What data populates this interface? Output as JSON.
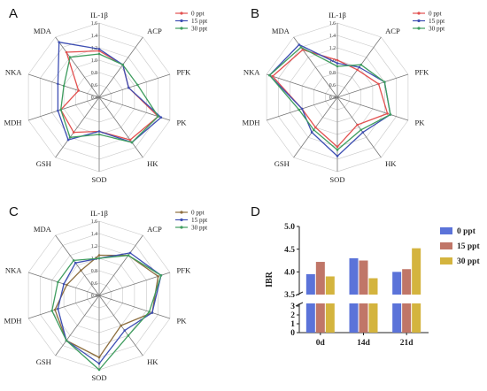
{
  "colors": {
    "ppt0": "#e2504f",
    "ppt15": "#3e4fb3",
    "ppt30": "#3f9d5f",
    "panelC_ppt0": "#8d6e3e",
    "bar0": "#5b73d9",
    "bar15": "#c07668",
    "bar30": "#d4b43e"
  },
  "chart_data": [
    {
      "type": "radar",
      "panel": "A",
      "axes": [
        "IL-1β",
        "ACP",
        "PFK",
        "PK",
        "HK",
        "SOD",
        "GSH",
        "MDH",
        "NKA",
        "MDA"
      ],
      "ticks": [
        "0.4",
        "0.6",
        "0.8",
        "1.0",
        "1.2",
        "1.4",
        "1.6"
      ],
      "range": [
        0.4,
        1.6
      ],
      "legend": [
        "0 ppt",
        "15 ppt",
        "30 ppt"
      ],
      "series": [
        {
          "name": "0 ppt",
          "values": [
            1.15,
            1.05,
            0.9,
            1.4,
            1.25,
            0.95,
            1.1,
            1.05,
            0.75,
            1.3
          ]
        },
        {
          "name": "15 ppt",
          "values": [
            1.18,
            1.05,
            0.9,
            1.45,
            1.3,
            0.95,
            1.25,
            1.1,
            1.1,
            1.5
          ]
        },
        {
          "name": "30 ppt",
          "values": [
            1.1,
            1.05,
            1.05,
            1.4,
            1.3,
            1.0,
            1.2,
            1.05,
            1.0,
            1.2
          ]
        }
      ]
    },
    {
      "type": "radar",
      "panel": "B",
      "axes": [
        "IL-1β",
        "ACP",
        "PFK",
        "PK",
        "HK",
        "SOD",
        "GSH",
        "MDH",
        "NKA",
        "MDA"
      ],
      "ticks": [
        "0.4",
        "0.6",
        "0.8",
        "1.0",
        "1.2",
        "1.4",
        "1.6"
      ],
      "range": [
        0.4,
        1.6
      ],
      "legend": [
        "0 ppt",
        "15 ppt",
        "30 ppt"
      ],
      "series": [
        {
          "name": "0 ppt",
          "values": [
            1.0,
            0.95,
            1.1,
            1.25,
            0.95,
            1.2,
            1.0,
            1.0,
            1.5,
            1.35
          ]
        },
        {
          "name": "15 ppt",
          "values": [
            0.95,
            1.0,
            1.2,
            1.3,
            1.1,
            1.35,
            1.1,
            1.0,
            1.55,
            1.45
          ]
        },
        {
          "name": "30 ppt",
          "values": [
            0.9,
            1.05,
            1.2,
            1.3,
            1.05,
            1.25,
            1.05,
            1.05,
            1.55,
            1.4
          ]
        }
      ]
    },
    {
      "type": "radar",
      "panel": "C",
      "axes": [
        "IL-1β",
        "ACP",
        "PFK",
        "PK",
        "HK",
        "SOD",
        "GSH",
        "MDH",
        "NKA",
        "MDA"
      ],
      "ticks": [
        "0.4",
        "0.6",
        "0.8",
        "1.0",
        "1.2",
        "1.4",
        "1.6"
      ],
      "range": [
        0.4,
        1.6
      ],
      "legend": [
        "0 ppt",
        "15 ppt",
        "30 ppt"
      ],
      "series": [
        {
          "name": "0 ppt",
          "values": [
            1.05,
            1.2,
            1.4,
            1.3,
            1.0,
            1.4,
            1.3,
            1.15,
            0.95,
            0.9
          ]
        },
        {
          "name": "15 ppt",
          "values": [
            1.0,
            1.25,
            1.45,
            1.3,
            1.1,
            1.5,
            1.3,
            1.1,
            1.0,
            1.05
          ]
        },
        {
          "name": "30 ppt",
          "values": [
            1.0,
            1.2,
            1.45,
            1.25,
            1.2,
            1.6,
            1.3,
            1.2,
            1.1,
            1.1
          ]
        }
      ]
    },
    {
      "type": "bar",
      "panel": "D",
      "categories": [
        "0d",
        "14d",
        "21d"
      ],
      "ylabel": "IBR",
      "yticks_upper": [
        "3.5",
        "4.0",
        "4.5",
        "5.0"
      ],
      "yticks_lower": [
        "0",
        "1",
        "2",
        "3"
      ],
      "ylim_upper": [
        3.5,
        5.0
      ],
      "ylim_lower": [
        0,
        3.3
      ],
      "series": [
        {
          "name": "0 ppt",
          "values": [
            3.95,
            4.3,
            4.0
          ]
        },
        {
          "name": "15 ppt",
          "values": [
            4.22,
            4.25,
            4.06
          ]
        },
        {
          "name": "30 ppt",
          "values": [
            3.9,
            3.86,
            4.52
          ]
        }
      ]
    }
  ]
}
